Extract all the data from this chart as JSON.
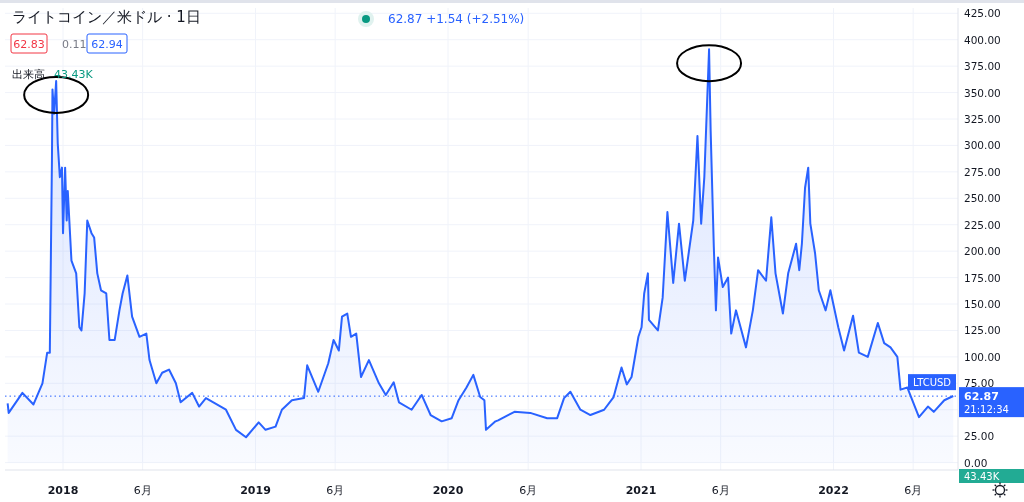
{
  "chart_data": {
    "type": "area",
    "title": "ライトコイン／米ドル · 1日",
    "subtitle": "62.87 +1.54 (+2.51%)",
    "annotations": [
      "62.83",
      "0.11",
      "62.94",
      "出来高",
      "43.43K",
      "21:12:34",
      "43.43K",
      "62.87"
    ],
    "xlim": [
      "2017-09-13",
      "2022-08-25"
    ],
    "ylim": [
      -7,
      430
    ],
    "xticks": [
      {
        "value": "2018-01-01",
        "label": "2018"
      },
      {
        "value": "2018-06-01",
        "label": "6月"
      },
      {
        "value": "2019-01-01",
        "label": "2019"
      },
      {
        "value": "2019-06-01",
        "label": "6月"
      },
      {
        "value": "2020-01-01",
        "label": "2020"
      },
      {
        "value": "2020-06-01",
        "label": "6月"
      },
      {
        "value": "2021-01-01",
        "label": "2021"
      },
      {
        "value": "2021-06-01",
        "label": "6月"
      },
      {
        "value": "2022-01-01",
        "label": "2022"
      },
      {
        "value": "2022-06-01",
        "label": "6月"
      }
    ],
    "yticks": [
      {
        "value": 0,
        "label": "0.00"
      },
      {
        "value": 25,
        "label": "25.00"
      },
      {
        "value": 50,
        "label": null
      },
      {
        "value": 75,
        "label": "75.00"
      },
      {
        "value": 100,
        "label": "100.00"
      },
      {
        "value": 125,
        "label": "125.00"
      },
      {
        "value": 150,
        "label": "150.00"
      },
      {
        "value": 175,
        "label": "175.00"
      },
      {
        "value": 200,
        "label": "200.00"
      },
      {
        "value": 225,
        "label": "225.00"
      },
      {
        "value": 250,
        "label": "250.00"
      },
      {
        "value": 275,
        "label": "275.00"
      },
      {
        "value": 300,
        "label": "300.00"
      },
      {
        "value": 325,
        "label": "325.00"
      },
      {
        "value": 350,
        "label": "350.00"
      },
      {
        "value": 375,
        "label": "375.00"
      },
      {
        "value": 400,
        "label": "400.00"
      },
      {
        "value": 425,
        "label": "425.00"
      }
    ],
    "grid": true,
    "marker": "none",
    "line_style": "solid",
    "ref_lines": [
      {
        "axis": "y",
        "value": 62.87,
        "label": "LTCUSD",
        "color": "#2962ff",
        "line_style": "dotted"
      }
    ],
    "series": [
      {
        "color": "#2962ff",
        "x": [
          "2017-09-18",
          "2017-09-20",
          "2017-10-16",
          "2017-11-06",
          "2017-11-23",
          "2017-12-02",
          "2017-12-07",
          "2017-12-11",
          "2017-12-12",
          "2017-12-15",
          "2017-12-19",
          "2017-12-22",
          "2017-12-26",
          "2017-12-30",
          "2018-01-01",
          "2018-01-05",
          "2018-01-08",
          "2018-01-10",
          "2018-01-17",
          "2018-01-26",
          "2018-02-01",
          "2018-02-05",
          "2018-02-11",
          "2018-02-16",
          "2018-02-24",
          "2018-03-01",
          "2018-03-07",
          "2018-03-14",
          "2018-03-24",
          "2018-03-30",
          "2018-04-09",
          "2018-04-18",
          "2018-04-24",
          "2018-05-03",
          "2018-05-12",
          "2018-05-26",
          "2018-06-08",
          "2018-06-14",
          "2018-06-27",
          "2018-07-08",
          "2018-07-21",
          "2018-08-03",
          "2018-08-12",
          "2018-09-03",
          "2018-09-16",
          "2018-09-29",
          "2018-11-06",
          "2018-11-25",
          "2018-12-14",
          "2019-01-07",
          "2019-01-20",
          "2019-02-08",
          "2019-02-20",
          "2019-03-11",
          "2019-04-03",
          "2019-04-09",
          "2019-04-30",
          "2019-05-19",
          "2019-05-29",
          "2019-06-08",
          "2019-06-14",
          "2019-06-24",
          "2019-07-01",
          "2019-07-11",
          "2019-07-20",
          "2019-08-04",
          "2019-08-23",
          "2019-09-05",
          "2019-09-20",
          "2019-09-30",
          "2019-10-24",
          "2019-11-12",
          "2019-11-29",
          "2019-12-20",
          "2020-01-08",
          "2020-01-21",
          "2020-02-05",
          "2020-02-18",
          "2020-03-02",
          "2020-03-10",
          "2020-03-13",
          "2020-03-31",
          "2020-04-05",
          "2020-05-06",
          "2020-06-05",
          "2020-07-07",
          "2020-07-26",
          "2020-08-08",
          "2020-08-20",
          "2020-09-08",
          "2020-09-27",
          "2020-10-23",
          "2020-11-10",
          "2020-11-25",
          "2020-12-05",
          "2020-12-14",
          "2020-12-27",
          "2021-01-02",
          "2021-01-07",
          "2021-01-14",
          "2021-01-16",
          "2021-02-02",
          "2021-02-11",
          "2021-02-20",
          "2021-03-03",
          "2021-03-14",
          "2021-03-25",
          "2021-04-10",
          "2021-04-18",
          "2021-04-25",
          "2021-05-01",
          "2021-05-10",
          "2021-05-13",
          "2021-05-19",
          "2021-05-23",
          "2021-05-27",
          "2021-06-05",
          "2021-06-15",
          "2021-06-21",
          "2021-06-30",
          "2021-07-19",
          "2021-08-01",
          "2021-08-11",
          "2021-08-26",
          "2021-09-05",
          "2021-09-13",
          "2021-09-27",
          "2021-10-07",
          "2021-10-22",
          "2021-10-28",
          "2021-11-02",
          "2021-11-08",
          "2021-11-14",
          "2021-11-18",
          "2021-11-27",
          "2021-12-04",
          "2021-12-17",
          "2021-12-26",
          "2022-01-10",
          "2022-01-21",
          "2022-02-07",
          "2022-02-18",
          "2022-03-07",
          "2022-03-26",
          "2022-04-07",
          "2022-04-19",
          "2022-05-02",
          "2022-05-08",
          "2022-05-21",
          "2022-06-12",
          "2022-06-29",
          "2022-07-10",
          "2022-07-30",
          "2022-08-16"
        ],
        "values": [
          56,
          47,
          66,
          55,
          75,
          104,
          104,
          286,
          353,
          330,
          361,
          302,
          270,
          279,
          217,
          279,
          229,
          257,
          191,
          179,
          128,
          125,
          160,
          229,
          217,
          213,
          179,
          163,
          160,
          116,
          116,
          144,
          160,
          177,
          138,
          119,
          122,
          97,
          75,
          85,
          88,
          75,
          57,
          66,
          53,
          61,
          50,
          31,
          24,
          38,
          31,
          34,
          50,
          59,
          61,
          92,
          67,
          94,
          116,
          106,
          138,
          141,
          119,
          122,
          81,
          97,
          75,
          64,
          76,
          57,
          50,
          64,
          45,
          39,
          42,
          59,
          71,
          83,
          62,
          59,
          31,
          39,
          40,
          48,
          47,
          42,
          42,
          61,
          67,
          50,
          45,
          50,
          62,
          90,
          74,
          81,
          119,
          128,
          160,
          179,
          135,
          125,
          156,
          237,
          170,
          226,
          172,
          229,
          309,
          226,
          270,
          391,
          314,
          204,
          144,
          194,
          166,
          175,
          122,
          144,
          109,
          144,
          182,
          172,
          232,
          179,
          141,
          179,
          207,
          182,
          207,
          260,
          279,
          226,
          198,
          163,
          144,
          163,
          128,
          106,
          139,
          104,
          100,
          132,
          113,
          109,
          100,
          69,
          71,
          43,
          53,
          48,
          59,
          63
        ]
      }
    ]
  }
}
